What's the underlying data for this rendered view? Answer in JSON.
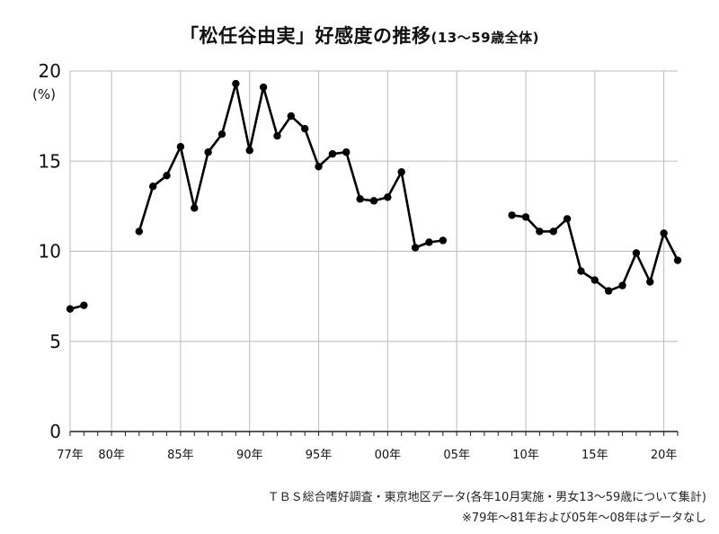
{
  "chart_data": {
    "type": "line",
    "title": "「松任谷由実」好感度の推移",
    "subtitle": "(13〜59歳全体)",
    "ylabel": "(%)",
    "ylim": [
      0,
      20
    ],
    "yticks": [
      0,
      5,
      10,
      15,
      20
    ],
    "xlim": [
      1977,
      2021
    ],
    "xticks": [
      {
        "x": 1977,
        "label": "77年"
      },
      {
        "x": 1980,
        "label": "80年"
      },
      {
        "x": 1985,
        "label": "85年"
      },
      {
        "x": 1990,
        "label": "90年"
      },
      {
        "x": 1995,
        "label": "95年"
      },
      {
        "x": 2000,
        "label": "00年"
      },
      {
        "x": 2005,
        "label": "05年"
      },
      {
        "x": 2010,
        "label": "10年"
      },
      {
        "x": 2015,
        "label": "15年"
      },
      {
        "x": 2020,
        "label": "20年"
      }
    ],
    "grid": true,
    "segments": [
      [
        [
          1977,
          6.8
        ],
        [
          1978,
          7.0
        ]
      ],
      [
        [
          1982,
          11.1
        ],
        [
          1983,
          13.6
        ],
        [
          1984,
          14.2
        ],
        [
          1985,
          15.8
        ],
        [
          1986,
          12.4
        ],
        [
          1987,
          15.5
        ],
        [
          1988,
          16.5
        ],
        [
          1989,
          19.3
        ],
        [
          1990,
          15.6
        ],
        [
          1991,
          19.1
        ],
        [
          1992,
          16.4
        ],
        [
          1993,
          17.5
        ],
        [
          1994,
          16.8
        ],
        [
          1995,
          14.7
        ],
        [
          1996,
          15.4
        ],
        [
          1997,
          15.5
        ],
        [
          1998,
          12.9
        ],
        [
          1999,
          12.8
        ],
        [
          2000,
          13.0
        ],
        [
          2001,
          14.4
        ],
        [
          2002,
          10.2
        ],
        [
          2003,
          10.5
        ],
        [
          2004,
          10.6
        ]
      ],
      [
        [
          2009,
          12.0
        ],
        [
          2010,
          11.9
        ],
        [
          2011,
          11.1
        ],
        [
          2012,
          11.1
        ],
        [
          2013,
          11.8
        ],
        [
          2014,
          8.9
        ],
        [
          2015,
          8.4
        ],
        [
          2016,
          7.8
        ],
        [
          2017,
          8.1
        ],
        [
          2018,
          9.9
        ],
        [
          2019,
          8.3
        ],
        [
          2020,
          11.0
        ],
        [
          2021,
          9.5
        ]
      ]
    ],
    "line_color": "#000000",
    "grid_color": "#bbbbbb"
  },
  "notes": {
    "source": "ＴＢＳ総合嗜好調査・東京地区データ(各年10月実施・男女13〜59歳について集計)",
    "missing": "※79年〜81年および05年〜08年はデータなし"
  }
}
